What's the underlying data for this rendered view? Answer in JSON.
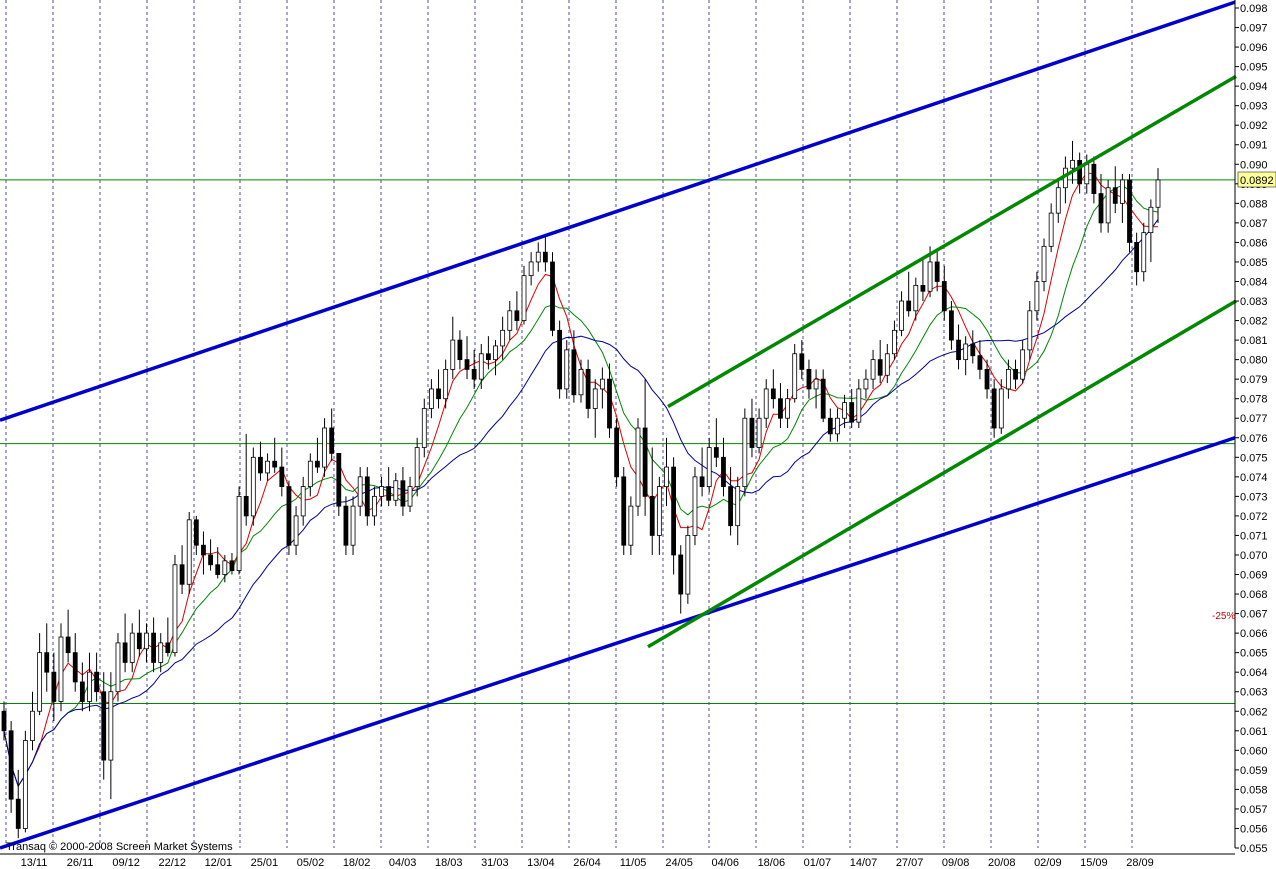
{
  "copyright": "Transaq © 2000-2008 Screen Market Systems",
  "price_badge": "0.0892",
  "pct_label": "-25%",
  "chart_data": {
    "type": "candlestick",
    "ylim": [
      0.055,
      0.098
    ],
    "y_ticks": [
      "0.055",
      "0.056",
      "0.057",
      "0.058",
      "0.059",
      "0.060",
      "0.061",
      "0.062",
      "0.063",
      "0.064",
      "0.065",
      "0.066",
      "0.067",
      "0.068",
      "0.069",
      "0.070",
      "0.071",
      "0.072",
      "0.073",
      "0.074",
      "0.075",
      "0.076",
      "0.077",
      "0.078",
      "0.079",
      "0.080",
      "0.081",
      "0.082",
      "0.083",
      "0.084",
      "0.085",
      "0.086",
      "0.087",
      "0.088",
      "0.089",
      "0.090",
      "0.091",
      "0.092",
      "0.093",
      "0.094",
      "0.095",
      "0.096",
      "0.097",
      "0.098"
    ],
    "x_labels": [
      "13/11",
      "26/11",
      "09/12",
      "22/12",
      "12/01",
      "25/01",
      "05/02",
      "18/02",
      "04/03",
      "18/03",
      "31/03",
      "13/04",
      "26/04",
      "11/05",
      "24/05",
      "04/06",
      "18/06",
      "01/07",
      "14/07",
      "27/07",
      "09/08",
      "20/08",
      "02/09",
      "15/09",
      "28/09"
    ],
    "horizontal_levels": [
      0.0892,
      0.0757,
      0.0624
    ],
    "colors": {
      "up": "#ffffff",
      "down": "#000000",
      "ma_fast": "#dd0000",
      "ma_mid": "#008800",
      "ma_slow": "#000099",
      "channel_outer": "#0000cc",
      "channel_inner": "#008800",
      "level": "#008800",
      "grid": "#000080",
      "badge": "#ffff99"
    },
    "channels": [
      {
        "name": "outer",
        "color": "#0000cc",
        "lines": [
          {
            "x1": 0,
            "y1": 0.0769,
            "x2": 1235,
            "y2": 0.0983
          },
          {
            "x1": 0,
            "y1": 0.055,
            "x2": 1235,
            "y2": 0.076
          }
        ]
      },
      {
        "name": "inner",
        "color": "#008800",
        "lines": [
          {
            "x1": 668,
            "y1": 0.0776,
            "x2": 1236,
            "y2": 0.0945
          },
          {
            "x1": 648,
            "y1": 0.0653,
            "x2": 1236,
            "y2": 0.083
          }
        ]
      }
    ],
    "candles": [
      [
        0.062,
        0.0625,
        0.0605,
        0.061
      ],
      [
        0.061,
        0.0615,
        0.0568,
        0.0575
      ],
      [
        0.0575,
        0.059,
        0.0555,
        0.056
      ],
      [
        0.056,
        0.061,
        0.0558,
        0.0605
      ],
      [
        0.0605,
        0.063,
        0.06,
        0.062
      ],
      [
        0.062,
        0.066,
        0.0618,
        0.065
      ],
      [
        0.065,
        0.0665,
        0.063,
        0.064
      ],
      [
        0.064,
        0.065,
        0.0615,
        0.0625
      ],
      [
        0.0625,
        0.0665,
        0.062,
        0.0658
      ],
      [
        0.0658,
        0.0672,
        0.0645,
        0.065
      ],
      [
        0.065,
        0.066,
        0.063,
        0.0635
      ],
      [
        0.0635,
        0.0645,
        0.062,
        0.0625
      ],
      [
        0.0625,
        0.065,
        0.062,
        0.064
      ],
      [
        0.064,
        0.065,
        0.0625,
        0.063
      ],
      [
        0.063,
        0.064,
        0.0585,
        0.0595
      ],
      [
        0.0595,
        0.064,
        0.0575,
        0.063
      ],
      [
        0.063,
        0.066,
        0.0625,
        0.0655
      ],
      [
        0.0655,
        0.067,
        0.064,
        0.0645
      ],
      [
        0.0645,
        0.0665,
        0.064,
        0.066
      ],
      [
        0.066,
        0.0672,
        0.0648,
        0.0652
      ],
      [
        0.0652,
        0.0665,
        0.0645,
        0.066
      ],
      [
        0.066,
        0.0668,
        0.064,
        0.0645
      ],
      [
        0.0645,
        0.066,
        0.064,
        0.0655
      ],
      [
        0.0655,
        0.0668,
        0.0648,
        0.065
      ],
      [
        0.065,
        0.07,
        0.0648,
        0.0695
      ],
      [
        0.0695,
        0.0705,
        0.068,
        0.0685
      ],
      [
        0.0685,
        0.0722,
        0.068,
        0.0718
      ],
      [
        0.0718,
        0.072,
        0.07,
        0.0705
      ],
      [
        0.0705,
        0.0712,
        0.069,
        0.07
      ],
      [
        0.07,
        0.0708,
        0.0692,
        0.0695
      ],
      [
        0.0695,
        0.0704,
        0.0688,
        0.069
      ],
      [
        0.069,
        0.07,
        0.0686,
        0.0697
      ],
      [
        0.0697,
        0.0701,
        0.069,
        0.0692
      ],
      [
        0.0692,
        0.0735,
        0.069,
        0.073
      ],
      [
        0.073,
        0.0762,
        0.0715,
        0.072
      ],
      [
        0.072,
        0.0755,
        0.0715,
        0.075
      ],
      [
        0.075,
        0.0758,
        0.0738,
        0.0742
      ],
      [
        0.0742,
        0.0752,
        0.0738,
        0.0748
      ],
      [
        0.0748,
        0.076,
        0.0742,
        0.0745
      ],
      [
        0.0745,
        0.0755,
        0.073,
        0.0735
      ],
      [
        0.0735,
        0.0738,
        0.07,
        0.0705
      ],
      [
        0.0705,
        0.0725,
        0.07,
        0.072
      ],
      [
        0.072,
        0.074,
        0.0715,
        0.0735
      ],
      [
        0.0735,
        0.0752,
        0.073,
        0.0748
      ],
      [
        0.0748,
        0.076,
        0.0742,
        0.0745
      ],
      [
        0.0745,
        0.077,
        0.074,
        0.0765
      ],
      [
        0.0765,
        0.0775,
        0.0748,
        0.0752
      ],
      [
        0.0752,
        0.0752,
        0.072,
        0.0725
      ],
      [
        0.0725,
        0.073,
        0.07,
        0.0705
      ],
      [
        0.0705,
        0.073,
        0.07,
        0.0725
      ],
      [
        0.0725,
        0.0745,
        0.072,
        0.074
      ],
      [
        0.074,
        0.0745,
        0.0715,
        0.072
      ],
      [
        0.072,
        0.0735,
        0.0715,
        0.073
      ],
      [
        0.073,
        0.074,
        0.0725,
        0.0735
      ],
      [
        0.0735,
        0.0745,
        0.0725,
        0.0728
      ],
      [
        0.0728,
        0.0742,
        0.0725,
        0.0738
      ],
      [
        0.0738,
        0.0745,
        0.072,
        0.0725
      ],
      [
        0.0725,
        0.074,
        0.0722,
        0.0735
      ],
      [
        0.0735,
        0.076,
        0.073,
        0.0755
      ],
      [
        0.0755,
        0.078,
        0.075,
        0.0775
      ],
      [
        0.0775,
        0.079,
        0.077,
        0.0785
      ],
      [
        0.0785,
        0.0795,
        0.0775,
        0.078
      ],
      [
        0.078,
        0.08,
        0.0775,
        0.0795
      ],
      [
        0.0795,
        0.0822,
        0.079,
        0.081
      ],
      [
        0.081,
        0.0815,
        0.0795,
        0.08
      ],
      [
        0.08,
        0.0812,
        0.079,
        0.0795
      ],
      [
        0.0795,
        0.0805,
        0.0785,
        0.079
      ],
      [
        0.079,
        0.0808,
        0.0785,
        0.0803
      ],
      [
        0.0803,
        0.0812,
        0.0795,
        0.08
      ],
      [
        0.08,
        0.081,
        0.0792,
        0.0807
      ],
      [
        0.0807,
        0.0822,
        0.08,
        0.0815
      ],
      [
        0.0815,
        0.083,
        0.081,
        0.0825
      ],
      [
        0.0825,
        0.0835,
        0.0815,
        0.082
      ],
      [
        0.082,
        0.0848,
        0.0818,
        0.0843
      ],
      [
        0.0843,
        0.0855,
        0.0838,
        0.085
      ],
      [
        0.085,
        0.086,
        0.0845,
        0.0855
      ],
      [
        0.0855,
        0.0864,
        0.0845,
        0.085
      ],
      [
        0.085,
        0.0855,
        0.0812,
        0.0815
      ],
      [
        0.0815,
        0.082,
        0.078,
        0.0785
      ],
      [
        0.0785,
        0.081,
        0.078,
        0.0805
      ],
      [
        0.0805,
        0.0815,
        0.0778,
        0.0782
      ],
      [
        0.0782,
        0.08,
        0.0778,
        0.0795
      ],
      [
        0.0795,
        0.08,
        0.077,
        0.0775
      ],
      [
        0.0775,
        0.079,
        0.076,
        0.0785
      ],
      [
        0.0785,
        0.0796,
        0.0775,
        0.079
      ],
      [
        0.079,
        0.0798,
        0.076,
        0.0765
      ],
      [
        0.0765,
        0.077,
        0.0735,
        0.074
      ],
      [
        0.074,
        0.0745,
        0.07,
        0.0705
      ],
      [
        0.0705,
        0.073,
        0.07,
        0.0725
      ],
      [
        0.0725,
        0.077,
        0.072,
        0.0765
      ],
      [
        0.0765,
        0.079,
        0.072,
        0.073
      ],
      [
        0.073,
        0.0755,
        0.07,
        0.071
      ],
      [
        0.071,
        0.074,
        0.07,
        0.0735
      ],
      [
        0.0735,
        0.076,
        0.0725,
        0.0745
      ],
      [
        0.0745,
        0.075,
        0.069,
        0.07
      ],
      [
        0.07,
        0.0705,
        0.067,
        0.068
      ],
      [
        0.068,
        0.0715,
        0.0675,
        0.071
      ],
      [
        0.071,
        0.0745,
        0.0705,
        0.074
      ],
      [
        0.074,
        0.0755,
        0.073,
        0.0735
      ],
      [
        0.0735,
        0.076,
        0.0732,
        0.0755
      ],
      [
        0.0755,
        0.077,
        0.0745,
        0.075
      ],
      [
        0.075,
        0.076,
        0.073,
        0.0735
      ],
      [
        0.0735,
        0.0745,
        0.071,
        0.0715
      ],
      [
        0.0715,
        0.074,
        0.0705,
        0.0735
      ],
      [
        0.0735,
        0.0775,
        0.073,
        0.077
      ],
      [
        0.077,
        0.078,
        0.075,
        0.0755
      ],
      [
        0.0755,
        0.0775,
        0.0752,
        0.077
      ],
      [
        0.077,
        0.079,
        0.0765,
        0.0785
      ],
      [
        0.0785,
        0.0795,
        0.0775,
        0.078
      ],
      [
        0.078,
        0.0788,
        0.0765,
        0.077
      ],
      [
        0.077,
        0.0785,
        0.0765,
        0.078
      ],
      [
        0.078,
        0.0808,
        0.0778,
        0.0803
      ],
      [
        0.0803,
        0.081,
        0.079,
        0.0795
      ],
      [
        0.0795,
        0.08,
        0.078,
        0.0785
      ],
      [
        0.0785,
        0.0795,
        0.0775,
        0.079
      ],
      [
        0.079,
        0.0795,
        0.0768,
        0.077
      ],
      [
        0.077,
        0.0775,
        0.0758,
        0.0762
      ],
      [
        0.0762,
        0.0775,
        0.0758,
        0.077
      ],
      [
        0.077,
        0.0782,
        0.0765,
        0.0778
      ],
      [
        0.0778,
        0.0785,
        0.0765,
        0.0768
      ],
      [
        0.0768,
        0.079,
        0.0765,
        0.0785
      ],
      [
        0.0785,
        0.0795,
        0.078,
        0.079
      ],
      [
        0.079,
        0.0805,
        0.0785,
        0.08
      ],
      [
        0.08,
        0.081,
        0.0788,
        0.0792
      ],
      [
        0.0792,
        0.0808,
        0.0788,
        0.0803
      ],
      [
        0.0803,
        0.082,
        0.08,
        0.0815
      ],
      [
        0.0815,
        0.0835,
        0.0812,
        0.083
      ],
      [
        0.083,
        0.0845,
        0.0822,
        0.0825
      ],
      [
        0.0825,
        0.0842,
        0.082,
        0.0838
      ],
      [
        0.0838,
        0.0852,
        0.083,
        0.0835
      ],
      [
        0.0835,
        0.0858,
        0.0832,
        0.085
      ],
      [
        0.085,
        0.0856,
        0.0835,
        0.084
      ],
      [
        0.084,
        0.0848,
        0.082,
        0.0825
      ],
      [
        0.0825,
        0.083,
        0.0805,
        0.081
      ],
      [
        0.081,
        0.0818,
        0.0795,
        0.08
      ],
      [
        0.08,
        0.0812,
        0.0792,
        0.0808
      ],
      [
        0.0808,
        0.0815,
        0.0798,
        0.0802
      ],
      [
        0.0802,
        0.081,
        0.079,
        0.0795
      ],
      [
        0.0795,
        0.08,
        0.078,
        0.0785
      ],
      [
        0.0785,
        0.079,
        0.076,
        0.0765
      ],
      [
        0.0765,
        0.079,
        0.0762,
        0.0785
      ],
      [
        0.0785,
        0.08,
        0.078,
        0.0795
      ],
      [
        0.0795,
        0.08,
        0.0785,
        0.079
      ],
      [
        0.079,
        0.081,
        0.0788,
        0.0805
      ],
      [
        0.0805,
        0.083,
        0.08,
        0.0825
      ],
      [
        0.0825,
        0.0845,
        0.082,
        0.084
      ],
      [
        0.084,
        0.0862,
        0.0835,
        0.0858
      ],
      [
        0.0858,
        0.088,
        0.0855,
        0.0875
      ],
      [
        0.0875,
        0.0893,
        0.087,
        0.0888
      ],
      [
        0.0888,
        0.0904,
        0.088,
        0.0898
      ],
      [
        0.0898,
        0.0912,
        0.089,
        0.0902
      ],
      [
        0.0902,
        0.0906,
        0.0885,
        0.089
      ],
      [
        0.089,
        0.0905,
        0.0885,
        0.09
      ],
      [
        0.09,
        0.0904,
        0.088,
        0.0885
      ],
      [
        0.0885,
        0.0895,
        0.0865,
        0.087
      ],
      [
        0.087,
        0.0892,
        0.0865,
        0.0888
      ],
      [
        0.0888,
        0.0899,
        0.0875,
        0.088
      ],
      [
        0.088,
        0.0895,
        0.087,
        0.0892
      ],
      [
        0.0892,
        0.0895,
        0.0855,
        0.086
      ],
      [
        0.086,
        0.0865,
        0.0838,
        0.0845
      ],
      [
        0.0845,
        0.087,
        0.084,
        0.0865
      ],
      [
        0.0865,
        0.0882,
        0.085,
        0.0878
      ],
      [
        0.0878,
        0.0898,
        0.087,
        0.0892
      ]
    ]
  }
}
